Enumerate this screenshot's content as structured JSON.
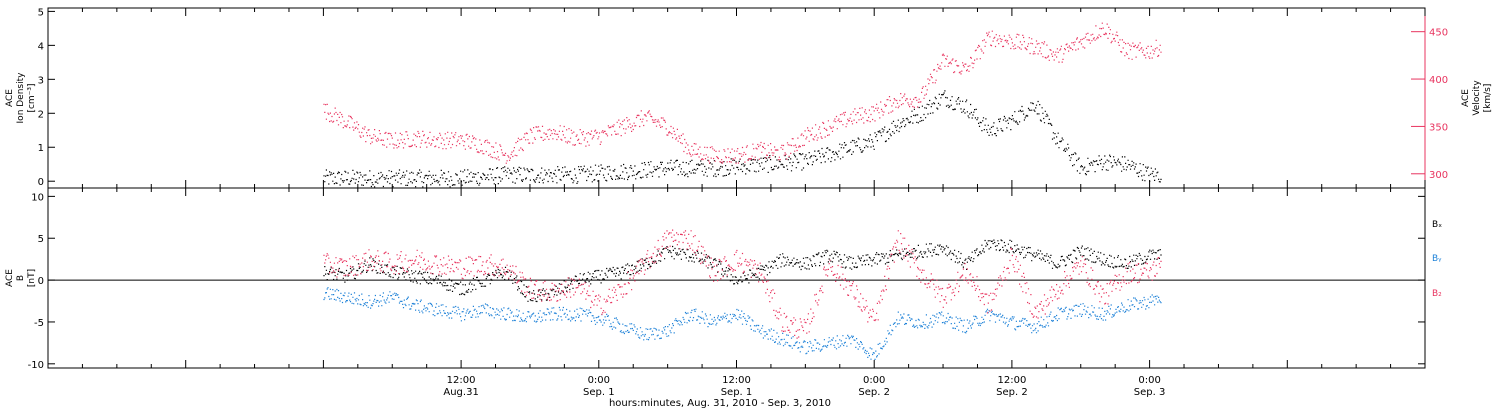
{
  "colors": {
    "density": "#000000",
    "velocity": "#e8345f",
    "bx": "#000000",
    "by": "#1f82d8",
    "bz": "#e8345f",
    "axis": "#000000"
  },
  "xaxis": {
    "label": "hours:minutes, Aug. 31, 2010 - Sep.  3, 2010",
    "range_hours": [
      -24,
      96
    ],
    "ticks": [
      {
        "hour": 12,
        "time": "12:00",
        "date": "Aug.31"
      },
      {
        "hour": 24,
        "time": "0:00",
        "date": "Sep. 1"
      },
      {
        "hour": 36,
        "time": "12:00",
        "date": "Sep. 1"
      },
      {
        "hour": 48,
        "time": "0:00",
        "date": "Sep. 2"
      },
      {
        "hour": 60,
        "time": "12:00",
        "date": "Sep. 2"
      },
      {
        "hour": 72,
        "time": "0:00",
        "date": "Sep. 3"
      }
    ]
  },
  "chart_data": [
    {
      "type": "scatter",
      "panel": "plasma",
      "ylabel_left": [
        "ACE",
        "Ion Density",
        "[cm⁻³]"
      ],
      "ylabel_right": [
        "ACE",
        "Velocity",
        "[km/s]"
      ],
      "ylim_left": [
        -0.2,
        5.1
      ],
      "ylim_right": [
        285,
        475
      ],
      "yticks_left": [
        "0",
        "1",
        "2",
        "3",
        "4",
        "5"
      ],
      "yticks_right": [
        "300",
        "350",
        "400",
        "450"
      ],
      "series": [
        {
          "axis": "left",
          "color": "#000000",
          "hours": [
            0,
            6,
            12,
            16,
            18,
            22,
            26,
            30,
            34,
            38,
            42,
            44,
            46,
            48,
            50,
            52,
            54,
            56,
            58,
            60,
            62,
            64,
            66,
            68,
            70,
            72,
            73
          ],
          "values": [
            0.1,
            0.1,
            0.1,
            0.2,
            0.2,
            0.2,
            0.3,
            0.4,
            0.4,
            0.5,
            0.6,
            0.8,
            1.0,
            1.2,
            1.7,
            2.0,
            2.5,
            2.2,
            1.5,
            1.8,
            2.3,
            1.2,
            0.4,
            0.6,
            0.5,
            0.2,
            0.2
          ]
        },
        {
          "axis": "right",
          "color": "#e8345f",
          "hours": [
            0,
            2,
            4,
            6,
            8,
            10,
            12,
            14,
            16,
            18,
            20,
            22,
            24,
            26,
            28,
            30,
            32,
            34,
            36,
            38,
            40,
            42,
            44,
            46,
            48,
            50,
            52,
            54,
            56,
            58,
            60,
            62,
            64,
            66,
            68,
            70,
            72,
            73
          ],
          "values": [
            368,
            355,
            340,
            335,
            338,
            336,
            336,
            330,
            320,
            340,
            345,
            338,
            340,
            350,
            360,
            350,
            325,
            320,
            320,
            325,
            322,
            340,
            350,
            360,
            365,
            378,
            380,
            420,
            410,
            445,
            440,
            435,
            425,
            440,
            455,
            430,
            430,
            435
          ]
        }
      ]
    },
    {
      "type": "scatter",
      "panel": "magnetic",
      "ylabel": [
        "ACE",
        "B",
        "[nT]"
      ],
      "ylim": [
        -10.5,
        11
      ],
      "yticks": [
        "-10",
        "-5",
        "0",
        "5",
        "10"
      ],
      "legend": [
        "Bₓ",
        "Bᵧ",
        "B₂"
      ],
      "series": [
        {
          "name": "Bx",
          "color": "#000000",
          "hours": [
            0,
            2,
            4,
            6,
            8,
            10,
            12,
            14,
            16,
            18,
            20,
            22,
            24,
            26,
            28,
            30,
            32,
            34,
            36,
            38,
            40,
            42,
            44,
            46,
            48,
            50,
            52,
            54,
            56,
            58,
            60,
            62,
            64,
            66,
            68,
            70,
            72,
            73
          ],
          "values": [
            1.0,
            0.5,
            2.0,
            1.0,
            0.5,
            0.0,
            -1.0,
            0.0,
            1.0,
            -2.0,
            -1.5,
            0.0,
            0.5,
            1.0,
            2.0,
            3.5,
            3.0,
            2.0,
            0.0,
            1.0,
            2.5,
            2.0,
            3.0,
            2.0,
            2.5,
            3.0,
            3.5,
            4.0,
            2.0,
            4.5,
            4.0,
            3.0,
            2.0,
            3.5,
            2.5,
            2.0,
            3.0,
            3.0
          ]
        },
        {
          "name": "By",
          "color": "#1f82d8",
          "hours": [
            0,
            2,
            4,
            6,
            8,
            10,
            12,
            14,
            16,
            18,
            20,
            22,
            24,
            26,
            28,
            30,
            32,
            34,
            36,
            38,
            40,
            42,
            44,
            46,
            48,
            50,
            52,
            54,
            56,
            58,
            60,
            62,
            64,
            66,
            68,
            70,
            72,
            73
          ],
          "values": [
            -1.5,
            -2.0,
            -2.5,
            -2.0,
            -3.0,
            -3.5,
            -4.0,
            -3.5,
            -4.0,
            -4.5,
            -4.0,
            -4.0,
            -4.5,
            -5.5,
            -6.5,
            -6.0,
            -4.0,
            -5.0,
            -4.0,
            -6.0,
            -7.0,
            -8.0,
            -7.5,
            -7.0,
            -9.0,
            -4.5,
            -5.0,
            -4.5,
            -5.5,
            -4.0,
            -5.0,
            -5.5,
            -4.0,
            -3.5,
            -4.0,
            -3.0,
            -2.5,
            -2.0
          ]
        },
        {
          "name": "Bz",
          "color": "#e8345f",
          "hours": [
            0,
            2,
            4,
            6,
            8,
            10,
            12,
            14,
            16,
            18,
            20,
            22,
            24,
            26,
            28,
            30,
            32,
            34,
            36,
            38,
            40,
            42,
            44,
            46,
            48,
            50,
            52,
            54,
            56,
            58,
            60,
            62,
            64,
            66,
            68,
            70,
            72,
            73
          ],
          "values": [
            2.0,
            1.5,
            2.5,
            2.0,
            2.5,
            2.0,
            1.5,
            2.0,
            1.5,
            -1.0,
            -1.5,
            -0.5,
            -3.0,
            -1.0,
            2.0,
            5.0,
            5.0,
            1.0,
            2.5,
            1.0,
            -5.0,
            -6.0,
            2.0,
            -1.0,
            -5.0,
            5.0,
            1.0,
            -2.0,
            1.0,
            -3.0,
            3.0,
            -4.0,
            -1.0,
            2.0,
            -2.0,
            1.0,
            1.0,
            2.0
          ]
        }
      ]
    }
  ]
}
